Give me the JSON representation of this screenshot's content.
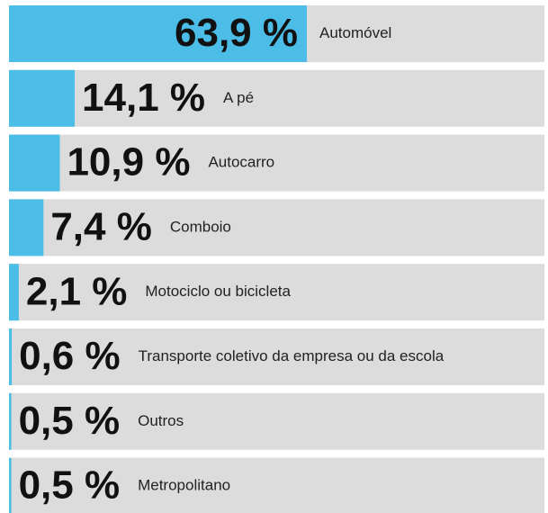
{
  "chart_data": {
    "type": "bar",
    "orientation": "horizontal",
    "categories": [
      "Automóvel",
      "A pé",
      "Autocarro",
      "Comboio",
      "Motociclo ou bicicleta",
      "Transporte coletivo da empresa ou da escola",
      "Outros",
      "Metropolitano"
    ],
    "values": [
      63.9,
      14.1,
      10.9,
      7.4,
      2.1,
      0.6,
      0.5,
      0.5
    ],
    "value_labels": [
      "63,9 %",
      "14,1 %",
      "10,9 %",
      "7,4 %",
      "2,1 %",
      "0,6 %",
      "0,5 %",
      "0,5 %"
    ],
    "color": "#4bbde6",
    "background_color": "#dcdcdc"
  }
}
